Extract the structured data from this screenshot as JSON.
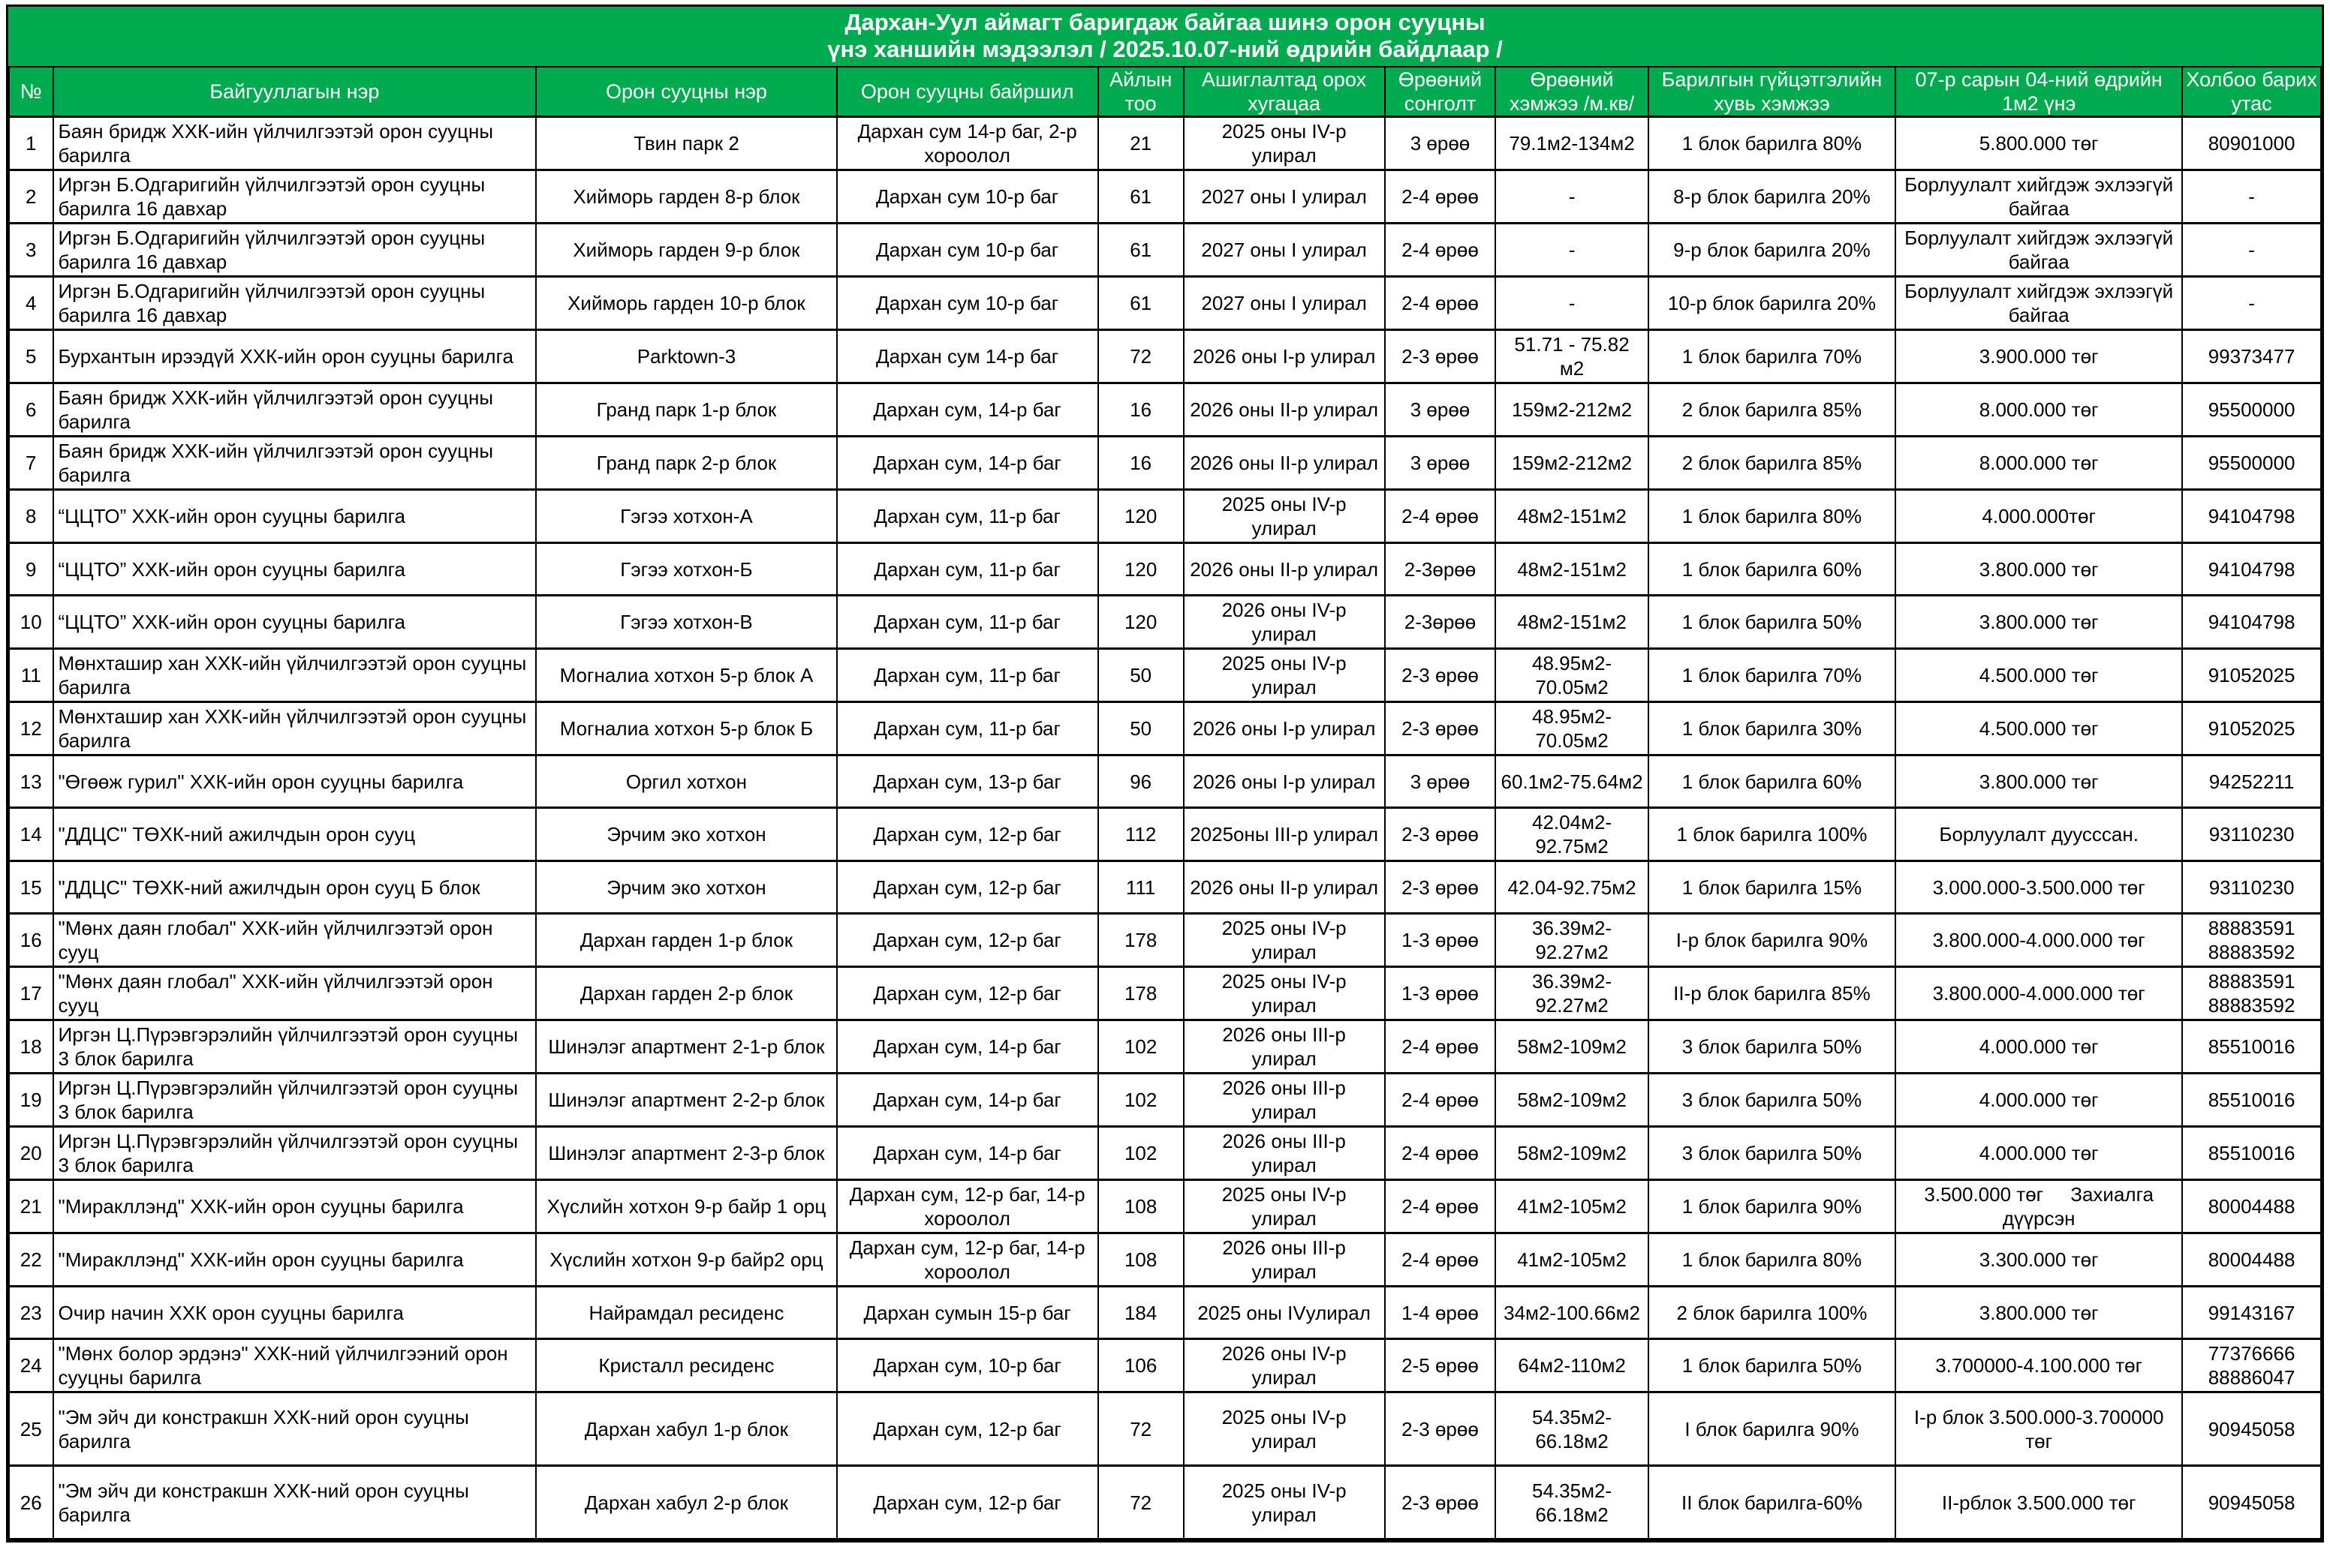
{
  "title": {
    "line1": "Дархан-Уул аймагт баригдаж байгаа шинэ орон сууцны",
    "line2": "үнэ ханшийн мэдээлэл / 2025.10.07-ний өдрийн байдлаар /"
  },
  "colors": {
    "header_green": "#00AB50",
    "border": "#000000",
    "header_text": "#FFFFFF"
  },
  "table": {
    "headers": [
      "№",
      "Байгууллагын нэр",
      "Орон сууцны нэр",
      "Орон сууцны байршил",
      "Айлын тоо",
      "Ашиглалтад орох хугацаа",
      "Өрөөний сонголт",
      "Өрөөний хэмжээ /м.кв/",
      "Барилгын гүйцэтгэлийн хувь хэмжээ",
      "07-р сарын 04-ний өдрийн 1м2 үнэ",
      "Холбоо барих утас"
    ],
    "rows": [
      [
        "1",
        "Баян бридж ХХК-ийн үйлчилгээтэй орон сууцны барилга",
        "Твин парк 2",
        "Дархан сум 14-р баг, 2-р хороолол",
        "21",
        "2025 оны IV-р улирал",
        "3 өрөө",
        "79.1м2-134м2",
        "1 блок барилга 80%",
        "5.800.000 төг",
        "80901000"
      ],
      [
        "2",
        "Иргэн Б.Одгаригийн үйлчилгээтэй орон сууцны барилга 16 давхар",
        "Хийморь гарден 8-р блок",
        "Дархан сум 10-р баг",
        "61",
        "2027 оны I улирал",
        "2-4 өрөө",
        "-",
        "8-р блок барилга 20%",
        "Борлуулалт хийгдэж эхлээгүй байгаа",
        "-"
      ],
      [
        "3",
        "Иргэн Б.Одгаригийн үйлчилгээтэй орон сууцны барилга 16 давхар",
        "Хийморь гарден 9-р блок",
        "Дархан сум 10-р баг",
        "61",
        "2027 оны I улирал",
        "2-4 өрөө",
        "-",
        "9-р  блок барилга 20%",
        "Борлуулалт хийгдэж эхлээгүй байгаа",
        "-"
      ],
      [
        "4",
        "Иргэн Б.Одгаригийн үйлчилгээтэй орон сууцны барилга 16 давхар",
        "Хийморь гарден 10-р блок",
        "Дархан сум 10-р баг",
        "61",
        "2027 оны I улирал",
        "2-4 өрөө",
        "-",
        "10-р блок барилга 20%",
        "Борлуулалт хийгдэж эхлээгүй байгаа",
        "-"
      ],
      [
        "5",
        "Бурхантын ирээдүй ХХК-ийн орон сууцны барилга",
        "Parktown-3",
        "Дархан сум 14-р баг",
        "72",
        "2026 оны I-р улирал",
        "2-3 өрөө",
        "51.71  -  75.82 м2",
        "1 блок барилга 70%",
        "3.900.000 төг",
        "99373477"
      ],
      [
        "6",
        "Баян бридж ХХК-ийн үйлчилгээтэй орон сууцны барилга",
        "Гранд парк 1-р блок",
        "Дархан сум, 14-р баг",
        "16",
        "2026 оны II-р улирал",
        "3 өрөө",
        "159м2-212м2",
        "2 блок барилга 85%",
        "8.000.000 төг",
        "95500000"
      ],
      [
        "7",
        "Баян бридж ХХК-ийн үйлчилгээтэй орон сууцны барилга",
        "Гранд парк 2-р блок",
        "Дархан сум, 14-р баг",
        "16",
        "2026 оны II-р улирал",
        "3 өрөө",
        "159м2-212м2",
        "2 блок барилга 85%",
        "8.000.000 төг",
        "95500000"
      ],
      [
        "8",
        "“ЦЦТО” ХХК-ийн орон сууцны барилга",
        "Гэгээ хотхон-А",
        "Дархан сум, 11-р баг",
        "120",
        "2025 оны IV-р улирал",
        "2-4 өрөө",
        "48м2-151м2",
        "1 блок барилга 80%",
        "4.000.000төг",
        "94104798"
      ],
      [
        "9",
        "“ЦЦТО” ХХК-ийн орон сууцны барилга",
        "Гэгээ хотхон-Б",
        "Дархан сум, 11-р баг",
        "120",
        "2026 оны II-р улирал",
        "2-3өрөө",
        "48м2-151м2",
        "1 блок барилга 60%",
        "3.800.000 төг",
        "94104798"
      ],
      [
        "10",
        "“ЦЦТО” ХХК-ийн орон сууцны барилга",
        "Гэгээ хотхон-В",
        "Дархан сум, 11-р баг",
        "120",
        "2026 оны IV-р улирал",
        "2-3өрөө",
        "48м2-151м2",
        "1 блок барилга 50%",
        "3.800.000 төг",
        "94104798"
      ],
      [
        "11",
        "Мөнхташир хан ХХК-ийн үйлчилгээтэй орон сууцны барилга",
        "Могналиа хотхон 5-р блок А",
        "Дархан сум, 11-р баг",
        "50",
        "2025 оны IV-р улирал",
        "2-3 өрөө",
        "48.95м2-70.05м2",
        "1 блок барилга 70%",
        "4.500.000 төг",
        "91052025"
      ],
      [
        "12",
        "Мөнхташир хан ХХК-ийн үйлчилгээтэй орон сууцны барилга",
        "Могналиа хотхон 5-р блок Б",
        "Дархан сум, 11-р баг",
        "50",
        "2026 оны I-р улирал",
        "2-3 өрөө",
        "48.95м2-70.05м2",
        "1 блок барилга 30%",
        "4.500.000 төг",
        "91052025"
      ],
      [
        "13",
        "\"Өгөөж гурил\" ХХК-ийн орон сууцны барилга",
        "Оргил хотхон",
        "Дархан сум, 13-р баг",
        "96",
        "2026 оны I-р улирал",
        "3 өрөө",
        "60.1м2-75.64м2",
        "1 блок барилга 60%",
        "3.800.000 төг",
        "94252211"
      ],
      [
        "14",
        "\"ДДЦС\" ТӨХК-ний ажилчдын орон сууц",
        "Эрчим эко хотхон",
        "Дархан сум, 12-р баг",
        "112",
        "2025оны III-р улирал",
        "2-3 өрөө",
        "42.04м2-92.75м2",
        "1 блок барилга 100%",
        "Борлуулалт дуусссан.",
        "93110230"
      ],
      [
        "15",
        "\"ДДЦС\" ТӨХК-ний ажилчдын орон сууц Б блок",
        "Эрчим эко хотхон",
        "Дархан сум, 12-р баг",
        "111",
        "2026 оны II-р улирал",
        "2-3 өрөө",
        "42.04-92.75м2",
        "1 блок барилга 15%",
        "3.000.000-3.500.000 төг",
        "93110230"
      ],
      [
        "16",
        "\"Мөнх даян глобал\" ХХК-ийн үйлчилгээтэй орон сууц",
        "Дархан гарден 1-р блок",
        "Дархан сум, 12-р баг",
        "178",
        "2025 оны IV-р улирал",
        "1-3 өрөө",
        "36.39м2-92.27м2",
        "I-р блок барилга 90%",
        "3.800.000-4.000.000 төг",
        "88883591\n88883592"
      ],
      [
        "17",
        "\"Мөнх даян глобал\" ХХК-ийн үйлчилгээтэй орон сууц",
        "Дархан гарден 2-р блок",
        "Дархан сум, 12-р баг",
        "178",
        "2025 оны IV-р улирал",
        "1-3 өрөө",
        "36.39м2-92.27м2",
        "II-р блок барилга 85%",
        "3.800.000-4.000.000 төг",
        "88883591\n88883592"
      ],
      [
        "18",
        "Иргэн Ц.Пүрэвгэрэлийн үйлчилгээтэй орон сууцны 3 блок барилга",
        "Шинэлэг апартмент 2-1-р блок",
        "Дархан сум, 14-р баг",
        "102",
        "2026 оны III-р улирал",
        "2-4 өрөө",
        "58м2-109м2",
        "3 блок барилга 50%",
        "4.000.000 төг",
        "85510016"
      ],
      [
        "19",
        "Иргэн Ц.Пүрэвгэрэлийн үйлчилгээтэй орон сууцны 3 блок барилга",
        "Шинэлэг апартмент 2-2-р блок",
        "Дархан сум, 14-р баг",
        "102",
        "2026 оны III-р улирал",
        "2-4 өрөө",
        "58м2-109м2",
        "3 блок барилга 50%",
        "4.000.000 төг",
        "85510016"
      ],
      [
        "20",
        "Иргэн Ц.Пүрэвгэрэлийн үйлчилгээтэй орон сууцны 3 блок барилга",
        "Шинэлэг апартмент 2-3-р блок",
        "Дархан сум, 14-р баг",
        "102",
        "2026 оны III-р улирал",
        "2-4 өрөө",
        "58м2-109м2",
        "3 блок барилга 50%",
        "4.000.000 төг",
        "85510016"
      ],
      [
        "21",
        "\"Миракллэнд\" ХХК-ийн орон сууцны барилга",
        "Хүслийн хотхон 9-р байр 1  орц",
        "Дархан сум, 12-р баг, 14-р хороолол",
        "108",
        "2025 оны IV-р улирал",
        "2-4 өрөө",
        "41м2-105м2",
        "1 блок барилга 90%",
        "3.500.000 төг     Захиалга дүүрсэн",
        "80004488"
      ],
      [
        "22",
        "\"Миракллэнд\" ХХК-ийн орон сууцны барилга",
        "Хүслийн хотхон 9-р байр2 орц",
        "Дархан сум, 12-р баг, 14-р хороолол",
        "108",
        "2026 оны III-р улирал",
        "2-4 өрөө",
        "41м2-105м2",
        "1 блок барилга 80%",
        "3.300.000 төг",
        "80004488"
      ],
      [
        "23",
        "Очир начин ХХК орон сууцны барилга",
        "Найрамдал  ресиденс",
        "Дархан сумын 15-р баг",
        "184",
        "2025 оны IVулирал",
        "1-4 өрөө",
        "34м2-100.66м2",
        "2 блок барилга 100%",
        "3.800.000 төг",
        "99143167"
      ],
      [
        "24",
        "\"Мөнх болор эрдэнэ\" ХХК-ний үйлчилгээний орон сууцны барилга",
        "Кристалл  ресиденс",
        "Дархан сум, 10-р баг",
        "106",
        "2026 оны IV-р улирал",
        "2-5 өрөө",
        "64м2-110м2",
        "1 блок барилга 50%",
        "3.700000-4.100.000 төг",
        "77376666\n88886047"
      ],
      [
        "25",
        "\"Эм эйч ди констракшн ХХК-ний орон сууцны барилга",
        "Дархан хабул 1-р блок",
        "Дархан сум, 12-р баг",
        "72",
        "2025 оны IV-р улирал",
        "2-3 өрөө",
        "54.35м2-66.18м2",
        "I блок барилга 90%",
        "I-р блок 3.500.000-3.700000 төг",
        "90945058"
      ],
      [
        "26",
        "\"Эм эйч ди констракшн ХХК-ний орон сууцны барилга",
        "Дархан хабул 2-р блок",
        "Дархан сум, 12-р баг",
        "72",
        "2025 оны IV-р улирал",
        "2-3 өрөө",
        "54.35м2-66.18м2",
        "II блок барилга-60%",
        "II-рблок 3.500.000 төг",
        "90945058"
      ]
    ]
  }
}
